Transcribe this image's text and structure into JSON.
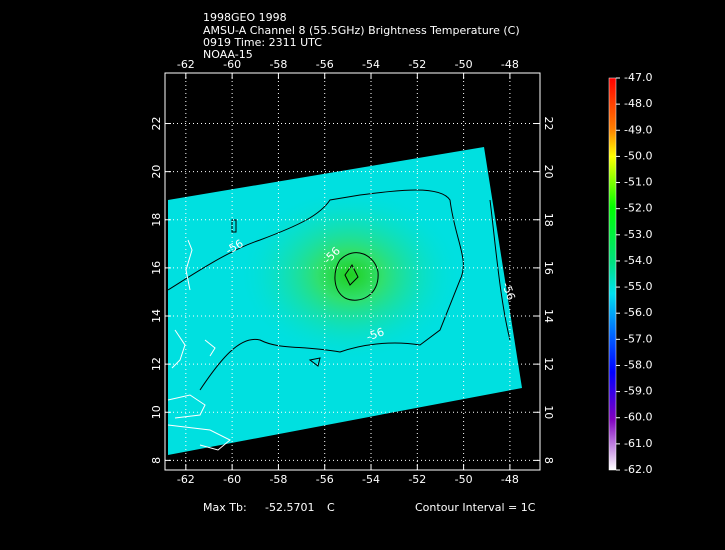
{
  "header": {
    "lines": [
      "1998GEO 1998",
      "AMSU-A Channel 8 (55.5GHz) Brightness Temperature (C)",
      "0919 Time: 2311 UTC",
      "NOAA-15"
    ]
  },
  "map": {
    "xlim": [
      -62.9,
      -46.7
    ],
    "ylim": [
      7.6,
      24.1
    ],
    "xticks": [
      -62,
      -60,
      -58,
      -56,
      -54,
      -52,
      -50,
      -48
    ],
    "yticks": [
      8,
      10,
      12,
      14,
      16,
      18,
      20,
      22
    ],
    "contour_labels": [
      "-56",
      "-56",
      "-56",
      "-56"
    ]
  },
  "colorbar": {
    "lim": [
      -62,
      -47
    ],
    "ticks": [
      {
        "value": -47,
        "label": "-47.0"
      },
      {
        "value": -48,
        "label": "-48.0"
      },
      {
        "value": -49,
        "label": "-49.0"
      },
      {
        "value": -50,
        "label": "-50.0"
      },
      {
        "value": -51,
        "label": "-51.0"
      },
      {
        "value": -52,
        "label": "-52.0"
      },
      {
        "value": -53,
        "label": "-53.0"
      },
      {
        "value": -54,
        "label": "-54.0"
      },
      {
        "value": -55,
        "label": "-55.0"
      },
      {
        "value": -56,
        "label": "-56.0"
      },
      {
        "value": -57,
        "label": "-57.0"
      },
      {
        "value": -58,
        "label": "-58.0"
      },
      {
        "value": -59,
        "label": "-59.0"
      },
      {
        "value": -60,
        "label": "-60.0"
      },
      {
        "value": -61,
        "label": "-61.0"
      },
      {
        "value": -62,
        "label": "-62.0"
      }
    ]
  },
  "footer": {
    "max_label": "Max Tb:",
    "max_value": "-52.5701",
    "max_unit": "C",
    "interval": "Contour Interval = 1C"
  }
}
